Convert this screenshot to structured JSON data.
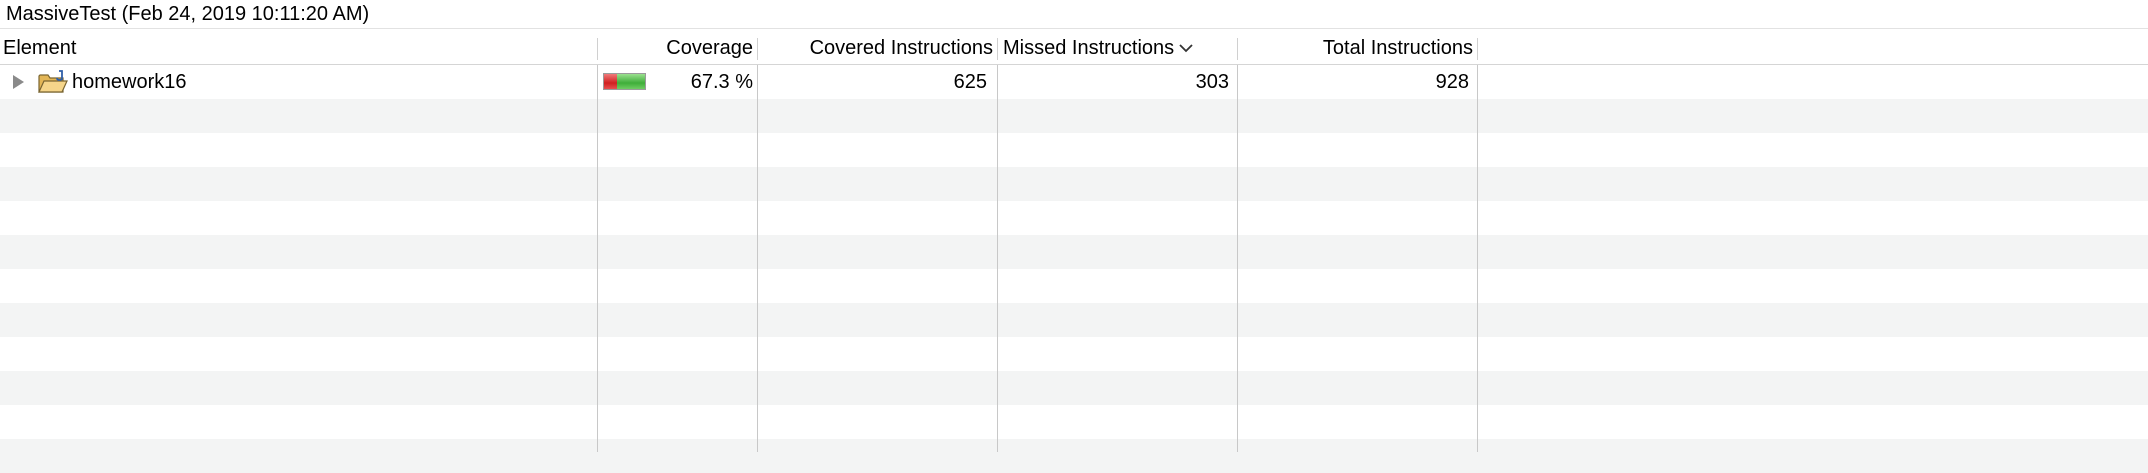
{
  "session": {
    "title": "MassiveTest (Feb 24, 2019 10:11:20 AM)"
  },
  "columns": {
    "element": "Element",
    "coverage": "Coverage",
    "covered": "Covered Instructions",
    "missed": "Missed Instructions",
    "total": "Total Instructions",
    "sorted_by": "Missed Instructions",
    "sort_direction": "descending"
  },
  "rows": [
    {
      "element": "homework16",
      "icon": "java-project-folder-icon",
      "expanded": false,
      "coverage": "67.3 %",
      "coverage_fraction": 0.673,
      "covered": "625",
      "missed": "303",
      "total": "928"
    }
  ],
  "colors": {
    "covered_bar": "#3fae3a",
    "missed_bar": "#d02020",
    "stripe": "#f3f4f4"
  }
}
